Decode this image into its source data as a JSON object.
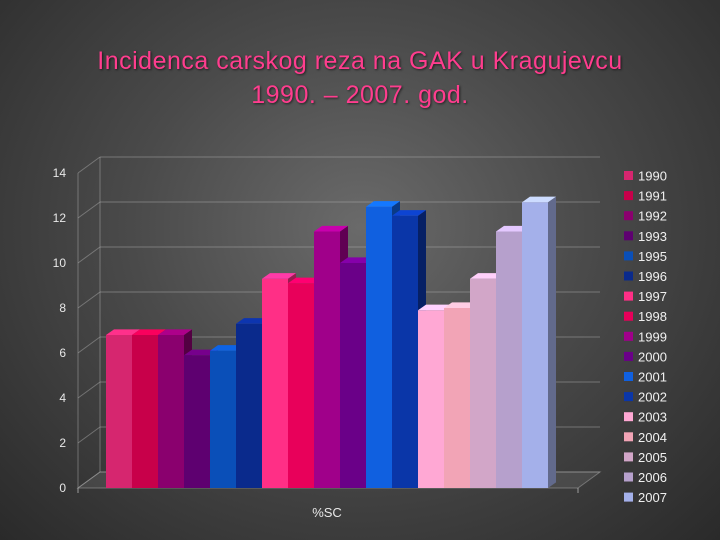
{
  "slide": {
    "title_line1": "Incidenca carskog reza na GAK u Kragujevcu",
    "title_line2": "1990. – 2007. god."
  },
  "chart_data": {
    "type": "bar",
    "categories": [
      "%SC"
    ],
    "ylim": [
      0,
      14
    ],
    "yticks": [
      0,
      2,
      4,
      6,
      8,
      10,
      12,
      14
    ],
    "grid": true,
    "legend": "right",
    "series": [
      {
        "name": "1990",
        "values": [
          6.8
        ],
        "color": "#d6266f"
      },
      {
        "name": "1991",
        "values": [
          6.8
        ],
        "color": "#c8004a"
      },
      {
        "name": "1992",
        "values": [
          6.8
        ],
        "color": "#8a006e"
      },
      {
        "name": "1993",
        "values": [
          5.9
        ],
        "color": "#5e0070"
      },
      {
        "name": "1995",
        "values": [
          6.1
        ],
        "color": "#0a4fb8"
      },
      {
        "name": "1996",
        "values": [
          7.3
        ],
        "color": "#0a2a8c"
      },
      {
        "name": "1997",
        "values": [
          9.3
        ],
        "color": "#ff2f86"
      },
      {
        "name": "1998",
        "values": [
          9.1
        ],
        "color": "#e8005a"
      },
      {
        "name": "1999",
        "values": [
          11.4
        ],
        "color": "#a0008a"
      },
      {
        "name": "2000",
        "values": [
          10.0
        ],
        "color": "#6a0088"
      },
      {
        "name": "2001",
        "values": [
          12.5
        ],
        "color": "#1060e0"
      },
      {
        "name": "2002",
        "values": [
          12.1
        ],
        "color": "#0a36a8"
      },
      {
        "name": "2003",
        "values": [
          7.9
        ],
        "color": "#ffa8d4"
      },
      {
        "name": "2004",
        "values": [
          8.0
        ],
        "color": "#f2a4b6"
      },
      {
        "name": "2005",
        "values": [
          9.3
        ],
        "color": "#d2a6c8"
      },
      {
        "name": "2006",
        "values": [
          11.4
        ],
        "color": "#b6a0cc"
      },
      {
        "name": "2007",
        "values": [
          12.7
        ],
        "color": "#a4b0ea"
      }
    ]
  }
}
